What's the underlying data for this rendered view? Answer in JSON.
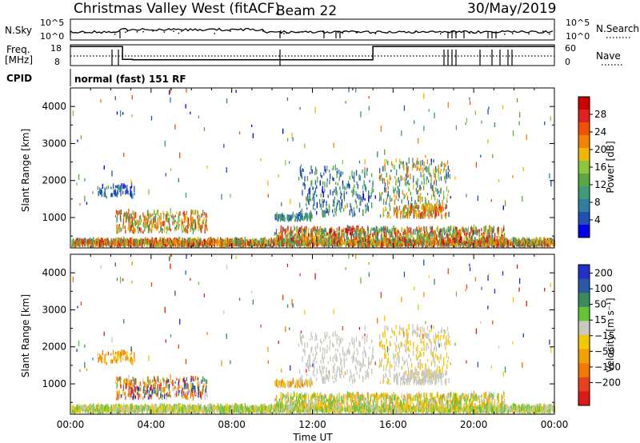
{
  "header": {
    "title": "Christmas Valley West (fitACF)",
    "beam": "Beam 22",
    "date": "30/May/2019"
  },
  "top_panels": {
    "nsky_label": "N.Sky",
    "nsky_ticks": [
      "10^5",
      "10^0"
    ],
    "nsearch_label": "N.Search",
    "nsearch_ticks": [
      "10^5",
      "10^0"
    ],
    "freq_label": "Freq.",
    "freq_unit": "[MHz]",
    "freq_ticks": [
      "18",
      "8"
    ],
    "nave_label": "Nave",
    "nave_ticks": [
      "60",
      "0"
    ],
    "cpid_label": "CPID",
    "cpid_text": "normal (fast) 151 RF"
  },
  "colors": {
    "power_scale": [
      "#0000ee",
      "#1f50b4",
      "#2f7ea0",
      "#3f9a78",
      "#5aa640",
      "#8cc43c",
      "#f2b600",
      "#f38200",
      "#f05000",
      "#e21e1e",
      "#cc0000"
    ],
    "velocity_scale": [
      "#2030c8",
      "#2858a8",
      "#3a8a5c",
      "#64c436",
      "#c8c8c0",
      "#f2c800",
      "#f2a000",
      "#f27800",
      "#e84020",
      "#e01818"
    ],
    "frequency_line": "#000000"
  },
  "chart_data": [
    {
      "type": "heatmap",
      "name": "power",
      "title": "",
      "xlabel": "",
      "ylabel": "Slant Range [km]",
      "xlim": [
        "00:00",
        "00:00"
      ],
      "x_ticks": [
        "00:00",
        "04:00",
        "08:00",
        "12:00",
        "16:00",
        "20:00",
        "00:00"
      ],
      "ylim": [
        180,
        4500
      ],
      "y_ticks": [
        1000,
        2000,
        3000,
        4000
      ],
      "colorbar": {
        "label": "Power [dB]",
        "range": [
          0,
          32
        ],
        "ticks": [
          "4",
          "8",
          "12",
          "16",
          "20",
          "24",
          "28"
        ]
      }
    },
    {
      "type": "heatmap",
      "name": "velocity",
      "title": "",
      "xlabel": "Time UT",
      "ylabel": "Slant Range [km]",
      "xlim": [
        "00:00",
        "00:00"
      ],
      "x_ticks": [
        "00:00",
        "04:00",
        "08:00",
        "12:00",
        "16:00",
        "20:00",
        "00:00"
      ],
      "ylim": [
        180,
        4500
      ],
      "y_ticks": [
        1000,
        2000,
        3000,
        4000
      ],
      "colorbar": {
        "label": "Velocity [m s⁻¹]",
        "ticks": [
          "200",
          "100",
          "50",
          "15",
          "−15",
          "−50",
          "−100",
          "−200"
        ]
      }
    },
    {
      "type": "line",
      "name": "transmit-frequency",
      "ylabel": "Freq. [MHz]",
      "ylim": [
        8,
        18
      ],
      "segments": [
        {
          "from": "00:00",
          "to": "02:35",
          "value": 17.2
        },
        {
          "from": "02:35",
          "to": "03:05",
          "value": 11
        },
        {
          "from": "03:05",
          "to": "15:00",
          "value": 10.8
        },
        {
          "from": "15:00",
          "to": "24:00",
          "value": 17.2
        }
      ]
    }
  ]
}
